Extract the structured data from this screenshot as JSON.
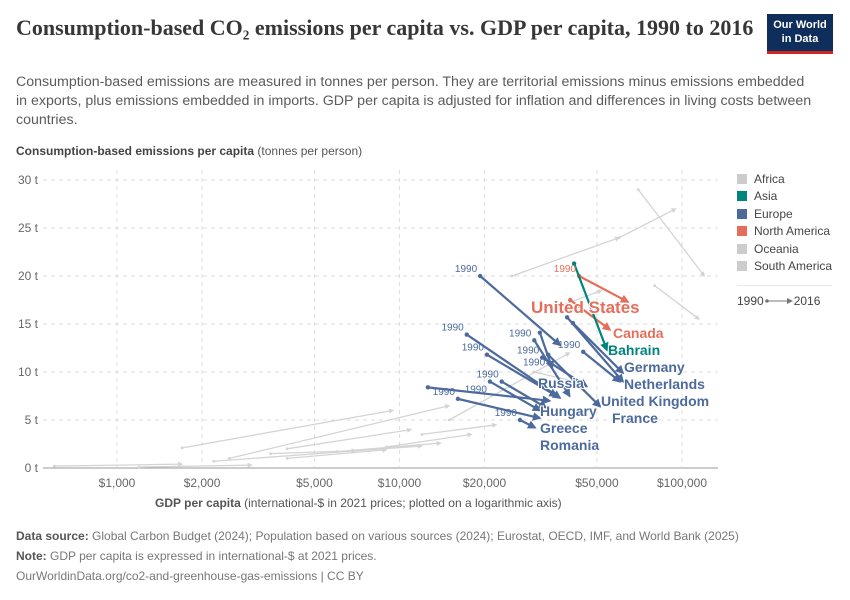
{
  "header": {
    "title": "Consumption-based CO₂ emissions per capita vs. GDP per capita, 1990 to 2016",
    "subtitle": "Consumption-based emissions are measured in tonnes per person. They are territorial emissions minus emissions embedded in exports, plus emissions embedded in imports. GDP per capita is adjusted for inflation and differences in living costs between countries.",
    "logo": "Our World in Data"
  },
  "colors": {
    "Africa": "#cccccc",
    "Asia": "#00847e",
    "Europe": "#4c6a9c",
    "North America": "#e56e5a",
    "Oceania": "#cccccc",
    "South America": "#cccccc",
    "grid": "#dddddd"
  },
  "legend": {
    "items": [
      "Africa",
      "Asia",
      "Europe",
      "North America",
      "Oceania",
      "South America"
    ],
    "start": "1990",
    "end": "2016"
  },
  "chart_data": {
    "type": "scatter",
    "mode": "connected-arrows",
    "ylabel_bold": "Consumption-based emissions per capita",
    "ylabel_rest": " (tonnes per person)",
    "xlabel_bold": "GDP per capita",
    "xlabel_rest": " (international-$ in 2021 prices; plotted on a logarithmic axis)",
    "xscale": "log",
    "xlim": [
      550,
      134000
    ],
    "ylim": [
      0,
      30
    ],
    "xticks": [
      {
        "v": 1000,
        "label": "$1,000"
      },
      {
        "v": 2000,
        "label": "$2,000"
      },
      {
        "v": 5000,
        "label": "$5,000"
      },
      {
        "v": 10000,
        "label": "$10,000"
      },
      {
        "v": 20000,
        "label": "$20,000"
      },
      {
        "v": 50000,
        "label": "$50,000"
      },
      {
        "v": 100000,
        "label": "$100,000"
      }
    ],
    "yticks": [
      {
        "v": 0,
        "label": "0 t"
      },
      {
        "v": 5,
        "label": "5 t"
      },
      {
        "v": 10,
        "label": "10 t"
      },
      {
        "v": 15,
        "label": "15 t"
      },
      {
        "v": 20,
        "label": "20 t"
      },
      {
        "v": 25,
        "label": "25 t"
      },
      {
        "v": 30,
        "label": "30 t"
      }
    ],
    "grid": true,
    "legend_position": "right",
    "series": [
      {
        "region": "Africa",
        "start": [
          1700,
          2.1
        ],
        "end": [
          9500,
          6.0
        ]
      },
      {
        "region": "Africa",
        "start": [
          2200,
          0.7
        ],
        "end": [
          12000,
          2.3
        ]
      },
      {
        "region": "Africa",
        "start": [
          600,
          0.2
        ],
        "end": [
          1700,
          0.4
        ]
      },
      {
        "region": "Africa",
        "start": [
          1200,
          0.1
        ],
        "end": [
          3000,
          0.3
        ]
      },
      {
        "region": "Africa",
        "start": [
          3500,
          1.5
        ],
        "end": [
          7000,
          1.8
        ]
      },
      {
        "region": "South America",
        "start": [
          6000,
          1.7
        ],
        "end": [
          14000,
          2.6
        ]
      },
      {
        "region": "South America",
        "start": [
          9000,
          2.2
        ],
        "end": [
          18000,
          3.5
        ]
      },
      {
        "region": "South America",
        "start": [
          4000,
          1.0
        ],
        "end": [
          9000,
          1.9
        ]
      },
      {
        "region": "South America",
        "start": [
          12000,
          3.5
        ],
        "end": [
          22000,
          4.5
        ]
      },
      {
        "region": "Oceania",
        "start": [
          38000,
          17.0
        ],
        "end": [
          52000,
          18.5
        ]
      },
      {
        "region": "Oceania",
        "start": [
          30000,
          10.0
        ],
        "end": [
          42000,
          9.0
        ]
      },
      {
        "region": "Asia",
        "start": [
          70000,
          29.0
        ],
        "end": [
          120000,
          20.0
        ]
      },
      {
        "region": "Asia",
        "start": [
          60000,
          24.0
        ],
        "end": [
          95000,
          27.0
        ]
      },
      {
        "region": "Asia",
        "start": [
          80000,
          19.0
        ],
        "end": [
          115000,
          15.5
        ]
      },
      {
        "region": "Asia",
        "start": [
          25000,
          20.0
        ],
        "end": [
          60000,
          24.0
        ]
      },
      {
        "region": "Asia",
        "start": [
          2500,
          1.0
        ],
        "end": [
          15000,
          6.5
        ]
      },
      {
        "region": "Asia",
        "start": [
          4000,
          2.0
        ],
        "end": [
          11000,
          4.0
        ]
      },
      {
        "region": "Asia",
        "start": [
          15000,
          5.0
        ],
        "end": [
          40000,
          12.0
        ]
      },
      {
        "region": "Europe",
        "start": [
          19300,
          20.0
        ],
        "end": [
          37000,
          12.8
        ],
        "label1990": true
      },
      {
        "region": "Europe",
        "start": [
          17300,
          13.9
        ],
        "end": [
          37000,
          7.3
        ],
        "label1990": true
      },
      {
        "region": "Europe",
        "start": [
          20400,
          11.8
        ],
        "end": [
          36000,
          7.5
        ],
        "label1990": true
      },
      {
        "region": "Europe",
        "start": [
          12600,
          8.4
        ],
        "end": [
          34000,
          7.0
        ]
      },
      {
        "region": "Europe",
        "start": [
          23000,
          9.0
        ],
        "end": [
          33000,
          6.3
        ],
        "label1990": true
      },
      {
        "region": "Europe",
        "start": [
          30000,
          13.3
        ],
        "end": [
          40000,
          7.5
        ],
        "label1990": true
      },
      {
        "region": "Europe",
        "start": [
          32000,
          11.5
        ],
        "end": [
          46000,
          8.5
        ],
        "label1990": true
      },
      {
        "region": "North America",
        "name": "United States",
        "start": [
          43200,
          20.0
        ],
        "end": [
          64400,
          17.3
        ],
        "label1990": true,
        "big": true
      },
      {
        "region": "North America",
        "name": "Canada",
        "start": [
          40200,
          17.5
        ],
        "end": [
          55600,
          14.4
        ]
      },
      {
        "region": "Asia",
        "name": "Bahrain",
        "start": [
          41500,
          21.3
        ],
        "end": [
          54200,
          12.3
        ]
      },
      {
        "region": "Europe",
        "name": "Germany",
        "start": [
          41100,
          15.1
        ],
        "end": [
          61800,
          9.9
        ]
      },
      {
        "region": "Europe",
        "name": "Netherlands",
        "start": [
          39200,
          15.7
        ],
        "end": [
          61800,
          9.0
        ]
      },
      {
        "region": "Europe",
        "name": "United Kingdom",
        "start": [
          44700,
          12.1
        ],
        "end": [
          60300,
          9.0
        ],
        "label1990": true
      },
      {
        "region": "Europe",
        "name": "Russia",
        "start": [
          31400,
          14.1
        ],
        "end": [
          34700,
          10.4
        ]
      },
      {
        "region": "Europe",
        "name": "France",
        "start": [
          33600,
          11.8
        ],
        "end": [
          51300,
          6.4
        ],
        "label1990": true
      },
      {
        "region": "Europe",
        "name": "Hungary",
        "start": [
          20900,
          9.0
        ],
        "end": [
          31400,
          6.0
        ],
        "label1990": true
      },
      {
        "region": "Europe",
        "name": "Greece",
        "start": [
          16100,
          7.2
        ],
        "end": [
          31400,
          5.2
        ],
        "label1990": true
      },
      {
        "region": "Europe",
        "name": "Romania",
        "start": [
          26700,
          5.0
        ],
        "end": [
          30200,
          4.2
        ],
        "label1990": true
      }
    ]
  },
  "footer": {
    "source_label": "Data source:",
    "source": " Global Carbon Budget (2024); Population based on various sources (2024); Eurostat, OECD, IMF, and World Bank (2025)",
    "note_label": "Note:",
    "note": " GDP per capita is expressed in international-$ at 2021 prices.",
    "url": "OurWorldinData.org/co2-and-greenhouse-gas-emissions | CC BY"
  }
}
